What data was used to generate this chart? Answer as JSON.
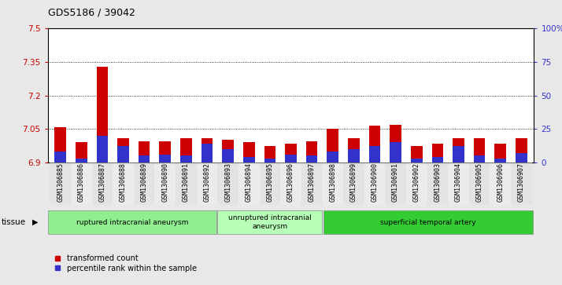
{
  "title": "GDS5186 / 39042",
  "samples": [
    "GSM1306885",
    "GSM1306886",
    "GSM1306887",
    "GSM1306888",
    "GSM1306889",
    "GSM1306890",
    "GSM1306891",
    "GSM1306892",
    "GSM1306893",
    "GSM1306894",
    "GSM1306895",
    "GSM1306896",
    "GSM1306897",
    "GSM1306898",
    "GSM1306899",
    "GSM1306900",
    "GSM1306901",
    "GSM1306902",
    "GSM1306903",
    "GSM1306904",
    "GSM1306905",
    "GSM1306906",
    "GSM1306907"
  ],
  "transformed_count": [
    7.057,
    6.99,
    7.33,
    7.01,
    6.995,
    6.993,
    7.01,
    7.01,
    7.0,
    6.99,
    6.975,
    6.983,
    6.995,
    7.05,
    7.01,
    7.065,
    7.07,
    6.975,
    6.985,
    7.01,
    7.01,
    6.985,
    7.01
  ],
  "percentile_rank": [
    8,
    3,
    20,
    12,
    5,
    6,
    5,
    14,
    10,
    4,
    3,
    6,
    5,
    8,
    10,
    12,
    15,
    3,
    4,
    12,
    5,
    3,
    7
  ],
  "ylim_left": [
    6.9,
    7.5
  ],
  "ylim_right": [
    0,
    100
  ],
  "yticks_left": [
    6.9,
    7.05,
    7.2,
    7.35,
    7.5
  ],
  "yticks_right": [
    0,
    25,
    50,
    75,
    100
  ],
  "ytick_labels_right": [
    "0",
    "25",
    "50",
    "75",
    "100%"
  ],
  "bar_color_red": "#cc0000",
  "bar_color_blue": "#3333cc",
  "groups": [
    {
      "label": "ruptured intracranial aneurysm",
      "start": 0,
      "end": 8,
      "color": "#90ee90"
    },
    {
      "label": "unruptured intracranial\naneurysm",
      "start": 8,
      "end": 13,
      "color": "#b8ffb8"
    },
    {
      "label": "superficial temporal artery",
      "start": 13,
      "end": 23,
      "color": "#33cc33"
    }
  ],
  "tissue_label": "tissue",
  "legend_items": [
    {
      "label": "transformed count",
      "color": "#cc0000"
    },
    {
      "label": "percentile rank within the sample",
      "color": "#3333cc"
    }
  ],
  "background_color": "#e8e8e8",
  "plot_bg": "#ffffff",
  "left_tick_color": "#cc0000",
  "right_tick_color": "#3333cc"
}
